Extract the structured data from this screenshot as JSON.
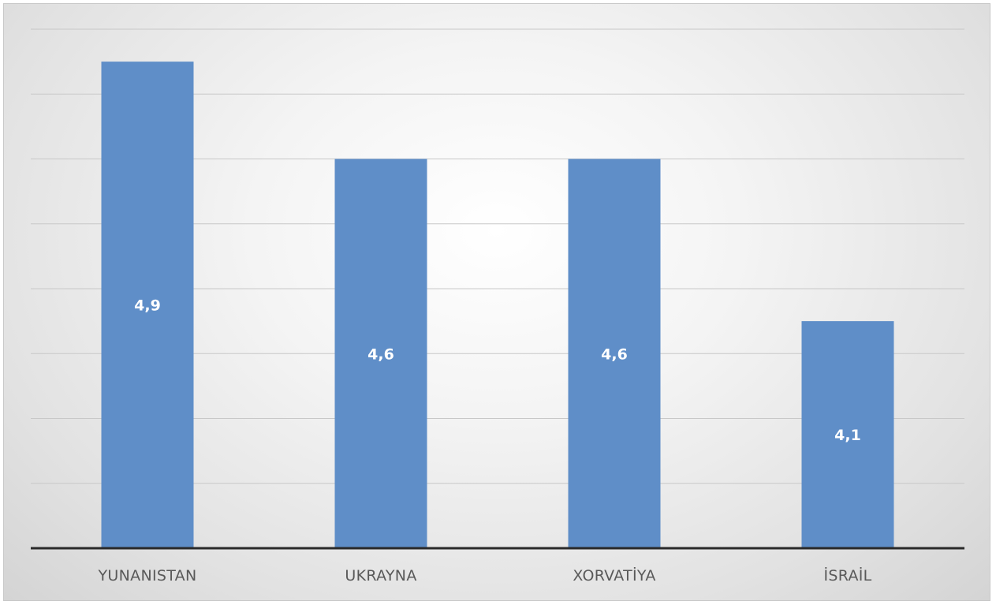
{
  "chart_data": {
    "type": "bar",
    "categories": [
      "YUNANISTAN",
      "UKRAYNA",
      "XORVATİYA",
      "İSRAİL"
    ],
    "values": [
      4.9,
      4.6,
      4.6,
      4.1
    ],
    "data_labels": [
      "4,9",
      "4,6",
      "4,6",
      "4,1"
    ],
    "title": "",
    "xlabel": "",
    "ylabel": "",
    "ylim": [
      3.4,
      5.0
    ],
    "grid": true,
    "legend": "none",
    "bar_color": "#5f8ec8"
  }
}
